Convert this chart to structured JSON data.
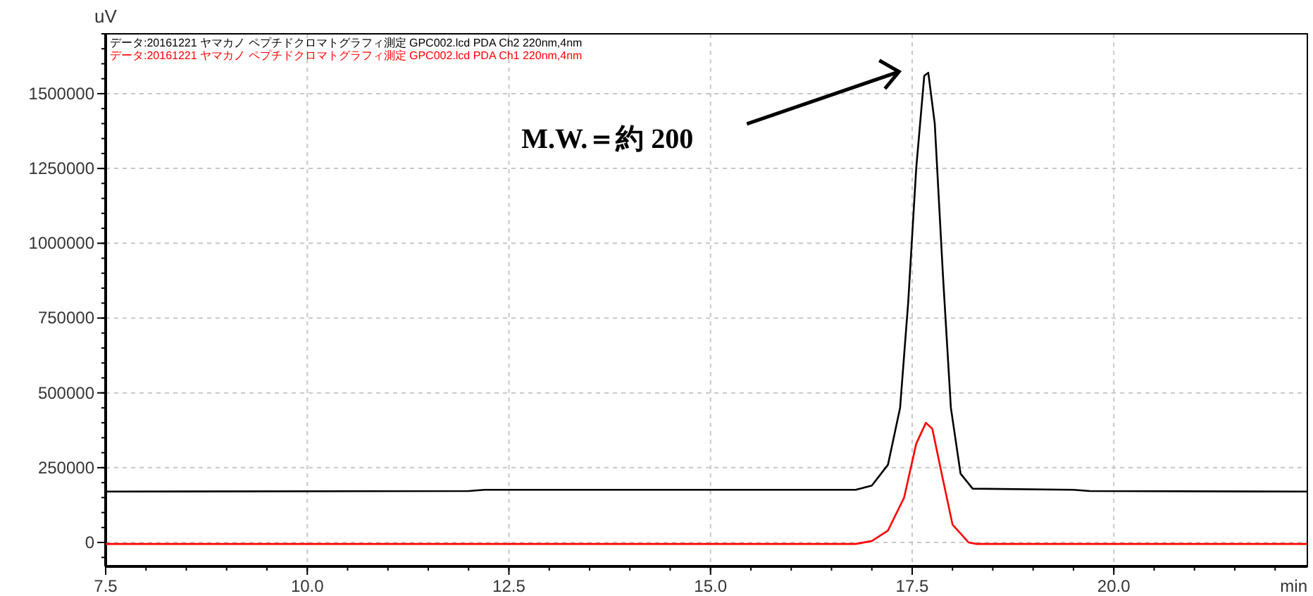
{
  "chart_data": {
    "type": "line",
    "xlabel": "min",
    "ylabel": "uV",
    "xlim": [
      7.5,
      22.4
    ],
    "ylim": [
      -80000,
      1700000
    ],
    "xticks": [
      {
        "value": 7.5,
        "label": "7.5"
      },
      {
        "value": 10,
        "label": "10.0"
      },
      {
        "value": 12.5,
        "label": "12.5"
      },
      {
        "value": 15,
        "label": "15.0"
      },
      {
        "value": 17.5,
        "label": "17.5"
      },
      {
        "value": 20,
        "label": "20.0"
      }
    ],
    "yticks": [
      0,
      250000,
      500000,
      750000,
      1000000,
      1250000,
      1500000
    ],
    "grid": true,
    "legend": "top left",
    "marker": "none",
    "line_style": "solid",
    "series": [
      {
        "name": "データ:20161221 ヤマカノ ペプチドクロマトグラフィ測定 GPC002.lcd PDA Ch2 220nm,4nm",
        "color": "#000000",
        "x": [
          7.5,
          12.0,
          12.2,
          16.8,
          17.0,
          17.2,
          17.35,
          17.45,
          17.55,
          17.65,
          17.7,
          17.78,
          17.88,
          17.98,
          18.1,
          18.25,
          19.5,
          19.7,
          22.4
        ],
        "values": [
          170000,
          172000,
          176000,
          176000,
          190000,
          260000,
          450000,
          800000,
          1250000,
          1560000,
          1570000,
          1400000,
          900000,
          450000,
          230000,
          180000,
          176000,
          172000,
          170000
        ]
      },
      {
        "name": "データ:20161221 ヤマカノ ペプチドクロマトグラフィ測定 GPC002.lcd PDA Ch1 220nm,4nm",
        "color": "#ff0000",
        "x": [
          7.5,
          16.8,
          17.0,
          17.2,
          17.4,
          17.55,
          17.67,
          17.75,
          17.85,
          18.0,
          18.2,
          18.3,
          22.4
        ],
        "values": [
          -5000,
          -5000,
          5000,
          40000,
          150000,
          330000,
          400000,
          380000,
          250000,
          60000,
          0,
          -5000,
          -5000
        ]
      }
    ],
    "annotations": [
      "M.W.＝約 200"
    ]
  }
}
